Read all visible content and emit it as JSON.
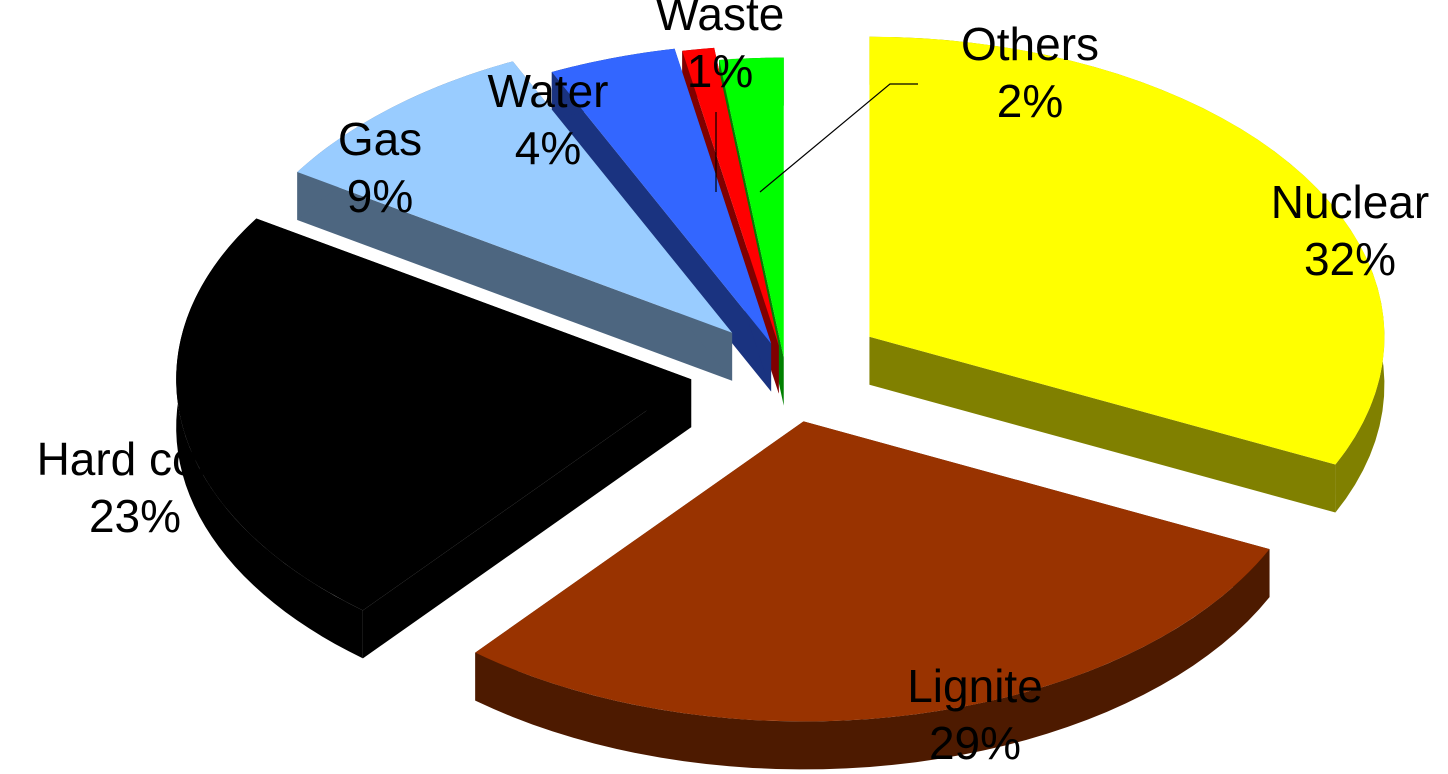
{
  "chart_data": {
    "type": "pie",
    "style": "3d-exploded",
    "labels": [
      "Nuclear",
      "Lignite",
      "Hard  coal",
      "Gas",
      "Water",
      "Waste",
      "Others"
    ],
    "values": [
      32,
      29,
      23,
      9,
      4,
      1,
      2
    ],
    "percent_labels": [
      "32%",
      "29%",
      "23%",
      "9%",
      "4%",
      "1%",
      "2%"
    ],
    "colors": {
      "top": [
        "#ffff00",
        "#993300",
        "#000000",
        "#99ccff",
        "#3366ff",
        "#ff0000",
        "#00ff00"
      ],
      "side": [
        "#808000",
        "#4d1a00",
        "#000000",
        "#4d6680",
        "#1a3380",
        "#800000",
        "#008000"
      ]
    }
  }
}
